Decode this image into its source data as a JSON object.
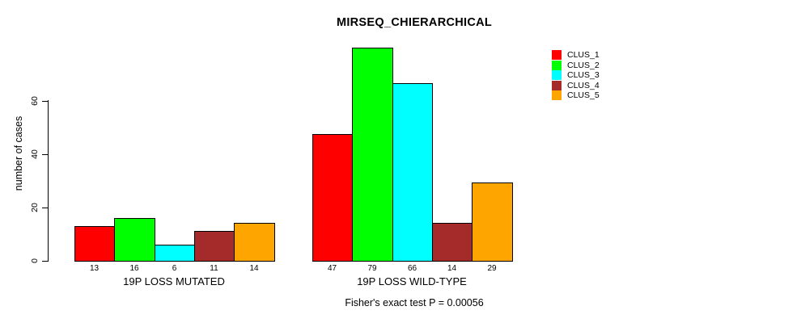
{
  "chart_data": {
    "type": "bar",
    "title": "MIRSEQ_CHIERARCHICAL",
    "ylabel": "number of cases",
    "yticks": [
      0,
      20,
      40,
      60
    ],
    "ylim": [
      0,
      80
    ],
    "grid": false,
    "legend_position": "top-right",
    "categories": [
      "19P LOSS MUTATED",
      "19P LOSS WILD-TYPE"
    ],
    "series": [
      {
        "name": "CLUS_1",
        "color": "#ff0000",
        "values": [
          13,
          47
        ]
      },
      {
        "name": "CLUS_2",
        "color": "#00ff00",
        "values": [
          16,
          79
        ]
      },
      {
        "name": "CLUS_3",
        "color": "#00ffff",
        "values": [
          6,
          66
        ]
      },
      {
        "name": "CLUS_4",
        "color": "#a52a2a",
        "values": [
          11,
          14
        ]
      },
      {
        "name": "CLUS_5",
        "color": "#ffa500",
        "values": [
          14,
          29
        ]
      }
    ],
    "value_labels_shown": true,
    "annotation": "Fisher's exact test P = 0.00056"
  }
}
